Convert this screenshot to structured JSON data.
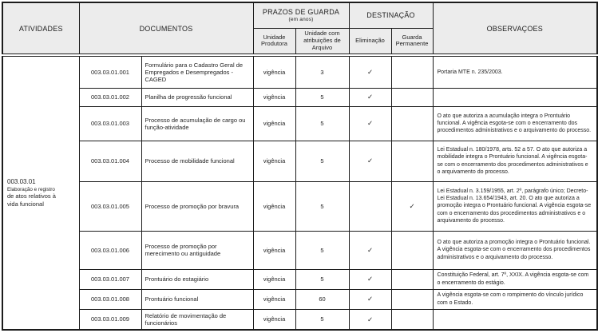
{
  "colors": {
    "header_bg": "#ececec",
    "border": "#1c1c1c",
    "text": "#1f1f1f"
  },
  "header": {
    "atividades": "ATIVIDADES",
    "documentos": "DOCUMENTOS",
    "prazos_title": "PRAZOS DE GUARDA",
    "prazos_subtitle": "(em anos)",
    "destinacao": "DESTINAÇÃO",
    "observacoes": "OBSERVAÇOES",
    "col_unidade_produtora": "Unidade Produtora",
    "col_unidade_arquivo": "Unidade com atribuições de Arquivo",
    "col_eliminacao": "Eliminação",
    "col_guarda_permanente": "Guarda Permanente"
  },
  "activity": {
    "code": "003.03.01",
    "label_line1": "Elaboração e registro",
    "label_line2": "de atos relativos à",
    "label_line3": "vida funcional"
  },
  "check_glyph": "✓",
  "rows": [
    {
      "code": "003.03.01.001",
      "document": "Formulário para o Cadastro Geral de Empregados e Desempregados - CAGED",
      "unidade_produtora": "vigência",
      "unidade_arquivo": "3",
      "eliminacao": "✓",
      "guarda_permanente": "",
      "observacoes": "Portaria MTE n. 235/2003."
    },
    {
      "code": "003.03.01.002",
      "document": "Planilha de progressão funcional",
      "unidade_produtora": "vigência",
      "unidade_arquivo": "5",
      "eliminacao": "✓",
      "guarda_permanente": "",
      "observacoes": ""
    },
    {
      "code": "003.03.01.003",
      "document": "Processo de acumulação de cargo ou função-atividade",
      "unidade_produtora": "vigência",
      "unidade_arquivo": "5",
      "eliminacao": "✓",
      "guarda_permanente": "",
      "observacoes": "O ato que autoriza a acumulação integra o Prontuário funcional. A vigência esgota-se com o encerramento dos procedimentos administrativos e o arquivamento do processo."
    },
    {
      "code": "003.03.01.004",
      "document": "Processo de mobilidade funcional",
      "unidade_produtora": "vigência",
      "unidade_arquivo": "5",
      "eliminacao": "✓",
      "guarda_permanente": "",
      "observacoes": "Lei Estadual n. 180/1978, arts. 52 a 57. O ato que autoriza a mobilidade integra o Prontuário funcional. A vigência esgota-se com o encerramento dos procedimentos administrativos e o arquivamento do processo."
    },
    {
      "code": "003.03.01.005",
      "document": "Processo de promoção por bravura",
      "unidade_produtora": "vigência",
      "unidade_arquivo": "5",
      "eliminacao": "",
      "guarda_permanente": "✓",
      "observacoes": "Lei Estadual n. 3.159/1955, art. 2º, parágrafo único; Decreto-Lei Estadual n. 13.654/1943, art. 20. O ato que autoriza a promoção integra o Prontuário funcional. A vigência esgota-se com o encerramento dos procedimentos administrativos e o arquivamento do processo."
    },
    {
      "code": "003.03.01.006",
      "document": "Processo de promoção por merecimento ou antiguidade",
      "unidade_produtora": "vigência",
      "unidade_arquivo": "5",
      "eliminacao": "✓",
      "guarda_permanente": "",
      "observacoes": "O ato que autoriza a promoção integra o Prontuário funcional. A vigência esgota-se com o encerramento dos procedimentos administrativos e o arquivamento do processo."
    },
    {
      "code": "003.03.01.007",
      "document": "Prontuário do estagiário",
      "unidade_produtora": "vigência",
      "unidade_arquivo": "5",
      "eliminacao": "✓",
      "guarda_permanente": "",
      "observacoes": "Constituição Federal, art. 7º, XXIX. A vigência esgota-se com o encerramento do estágio."
    },
    {
      "code": "003.03.01.008",
      "document": "Prontuário funcional",
      "unidade_produtora": "vigência",
      "unidade_arquivo": "60",
      "eliminacao": "✓",
      "guarda_permanente": "",
      "observacoes": "A vigência esgota-se com o rompimento do vínculo jurídico com o Estado."
    },
    {
      "code": "003.03.01.009",
      "document": "Relatório de movimentação de funcionários",
      "unidade_produtora": "vigência",
      "unidade_arquivo": "5",
      "eliminacao": "✓",
      "guarda_permanente": "",
      "observacoes": ""
    }
  ]
}
